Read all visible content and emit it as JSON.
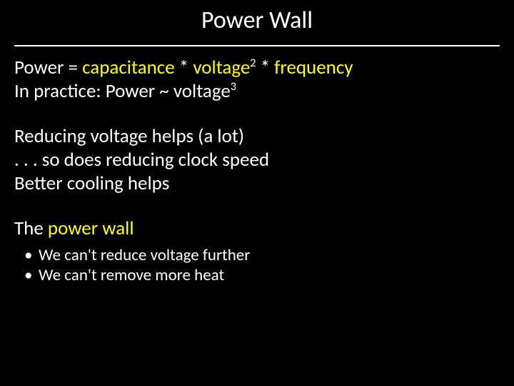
{
  "slide": {
    "title": "Power Wall",
    "colors": {
      "background": "#000000",
      "text": "#ffffff",
      "accent": "#ffff00",
      "rule": "#ffffff"
    },
    "typography": {
      "title_fontsize_pt": 34,
      "body_fontsize_pt": 27,
      "bullet_fontsize_pt": 23,
      "font_family": "Calibri"
    },
    "eq": {
      "p1_a": "Power = ",
      "p1_b": "capacitance",
      "p1_c": " * ",
      "p1_d": "voltage",
      "p1_e": " * ",
      "p1_f": "frequency",
      "sup2": "2",
      "p2_a": "In practice: Power ~ voltage",
      "sup3": "3"
    },
    "mid": {
      "l1": "Reducing voltage helps (a lot)",
      "l2": ". . . so does reducing clock speed",
      "l3": "Better cooling helps"
    },
    "wall": {
      "a": "The ",
      "b": "power wall",
      "bullets": [
        "We can't reduce voltage further",
        "We can't remove more heat"
      ]
    }
  }
}
